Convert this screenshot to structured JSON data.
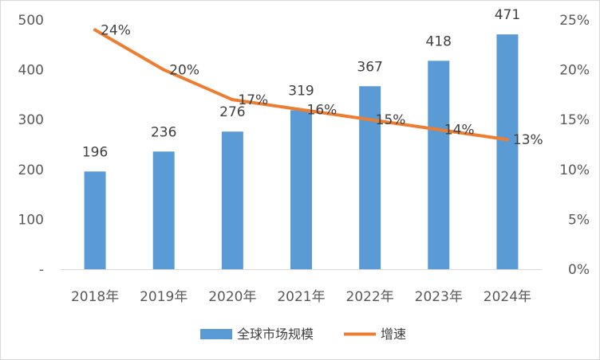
{
  "chart_data": {
    "type": "bar",
    "categories": [
      "2018年",
      "2019年",
      "2020年",
      "2021年",
      "2022年",
      "2023年",
      "2024年"
    ],
    "series": [
      {
        "name": "全球市场规模",
        "type": "bar",
        "axis": "left",
        "values": [
          196,
          236,
          276,
          319,
          367,
          418,
          471
        ],
        "labels": [
          "196",
          "236",
          "276",
          "319",
          "367",
          "418",
          "471"
        ]
      },
      {
        "name": "增速",
        "type": "line",
        "axis": "right",
        "values": [
          0.24,
          0.2,
          0.17,
          0.16,
          0.15,
          0.14,
          0.13
        ],
        "labels": [
          "24%",
          "20%",
          "17%",
          "16%",
          "15%",
          "14%",
          "13%"
        ]
      }
    ],
    "y_left": {
      "ylim": [
        0,
        500
      ],
      "ticks": [
        "-",
        "100",
        "200",
        "300",
        "400",
        "500"
      ]
    },
    "y_right": {
      "ylim": [
        0,
        0.25
      ],
      "ticks": [
        "0%",
        "5%",
        "10%",
        "15%",
        "20%",
        "25%"
      ]
    },
    "grid": false,
    "legend_position": "bottom",
    "colors": {
      "bar": "#5b9bd5",
      "line": "#ed7d31"
    }
  }
}
